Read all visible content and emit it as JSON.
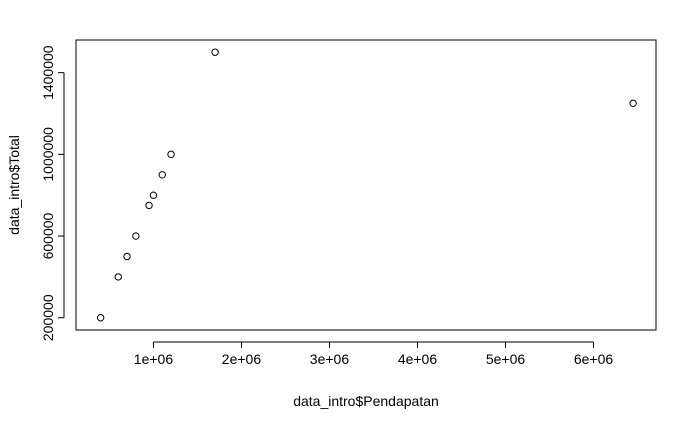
{
  "chart_data": {
    "type": "scatter",
    "title": "",
    "xlabel": "data_intro$Pendapatan",
    "ylabel": "data_intro$Total",
    "xlim": [
      120000,
      6710000
    ],
    "ylim": [
      140000,
      1560000
    ],
    "xticks": [
      1000000,
      2000000,
      3000000,
      4000000,
      5000000,
      6000000
    ],
    "xtick_labels": [
      "1e+06",
      "2e+06",
      "3e+06",
      "4e+06",
      "5e+06",
      "6e+06"
    ],
    "yticks": [
      200000,
      600000,
      1000000,
      1400000
    ],
    "ytick_labels": [
      "200000",
      "600000",
      "1000000",
      "1400000"
    ],
    "grid": false,
    "points": [
      {
        "x": 400000,
        "y": 200000
      },
      {
        "x": 600000,
        "y": 400000
      },
      {
        "x": 700000,
        "y": 500000
      },
      {
        "x": 800000,
        "y": 600000
      },
      {
        "x": 950000,
        "y": 750000
      },
      {
        "x": 1000000,
        "y": 800000
      },
      {
        "x": 1100000,
        "y": 900000
      },
      {
        "x": 1200000,
        "y": 1000000
      },
      {
        "x": 1700000,
        "y": 1500000
      },
      {
        "x": 6450000,
        "y": 1250000
      }
    ]
  }
}
